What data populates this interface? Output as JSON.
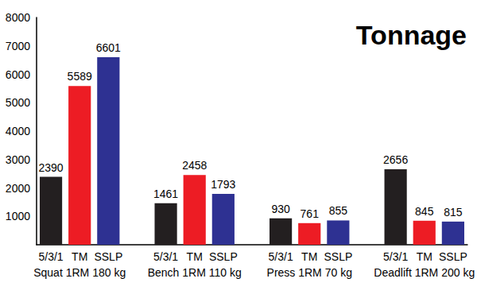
{
  "chart_data": {
    "type": "bar",
    "title": "Tonnage",
    "categories": [
      "Squat 1RM 180 kg",
      "Bench 1RM 110 kg",
      "Press 1RM 70 kg",
      "Deadlift 1RM 200 kg"
    ],
    "series": [
      {
        "name": "5/3/1",
        "color": "#231f20",
        "values": [
          2390,
          1461,
          930,
          2656
        ]
      },
      {
        "name": "TM",
        "color": "#ed1c24",
        "values": [
          5589,
          2458,
          761,
          845
        ]
      },
      {
        "name": "SSLP",
        "color": "#2e3192",
        "values": [
          6601,
          1793,
          855,
          815
        ]
      }
    ],
    "ylim": [
      0,
      8000
    ],
    "yticks": [
      1000,
      2000,
      3000,
      4000,
      5000,
      6000,
      7000,
      8000
    ],
    "grid": false,
    "data_labels": true
  }
}
